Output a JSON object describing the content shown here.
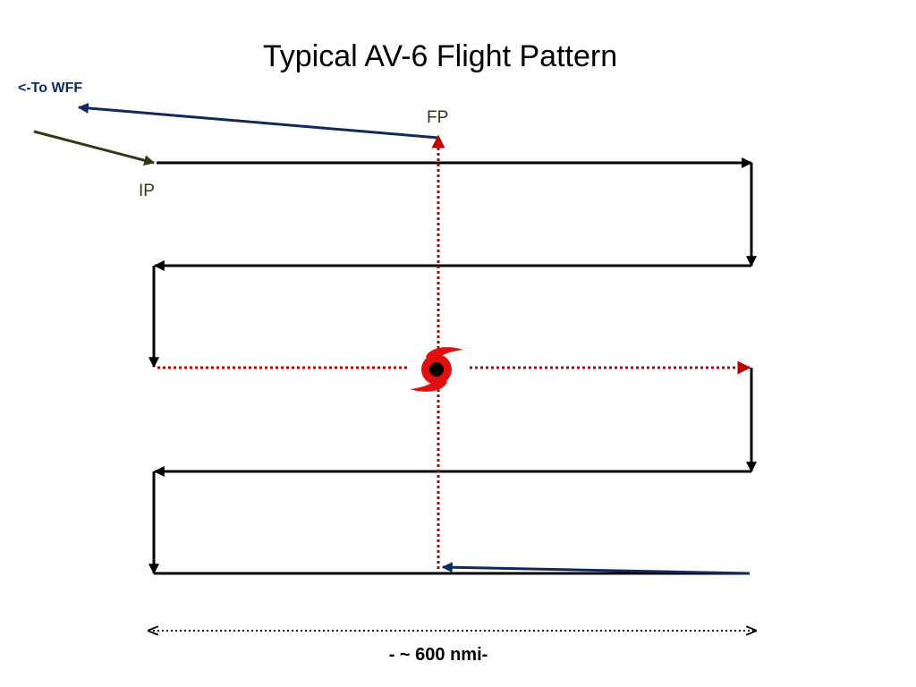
{
  "title": "Typical AV-6 Flight Pattern",
  "labels": {
    "to_wff": "<-To WFF",
    "fp": "FP",
    "ip": "IP",
    "distance": "- ~ 600 nmi-"
  }
}
